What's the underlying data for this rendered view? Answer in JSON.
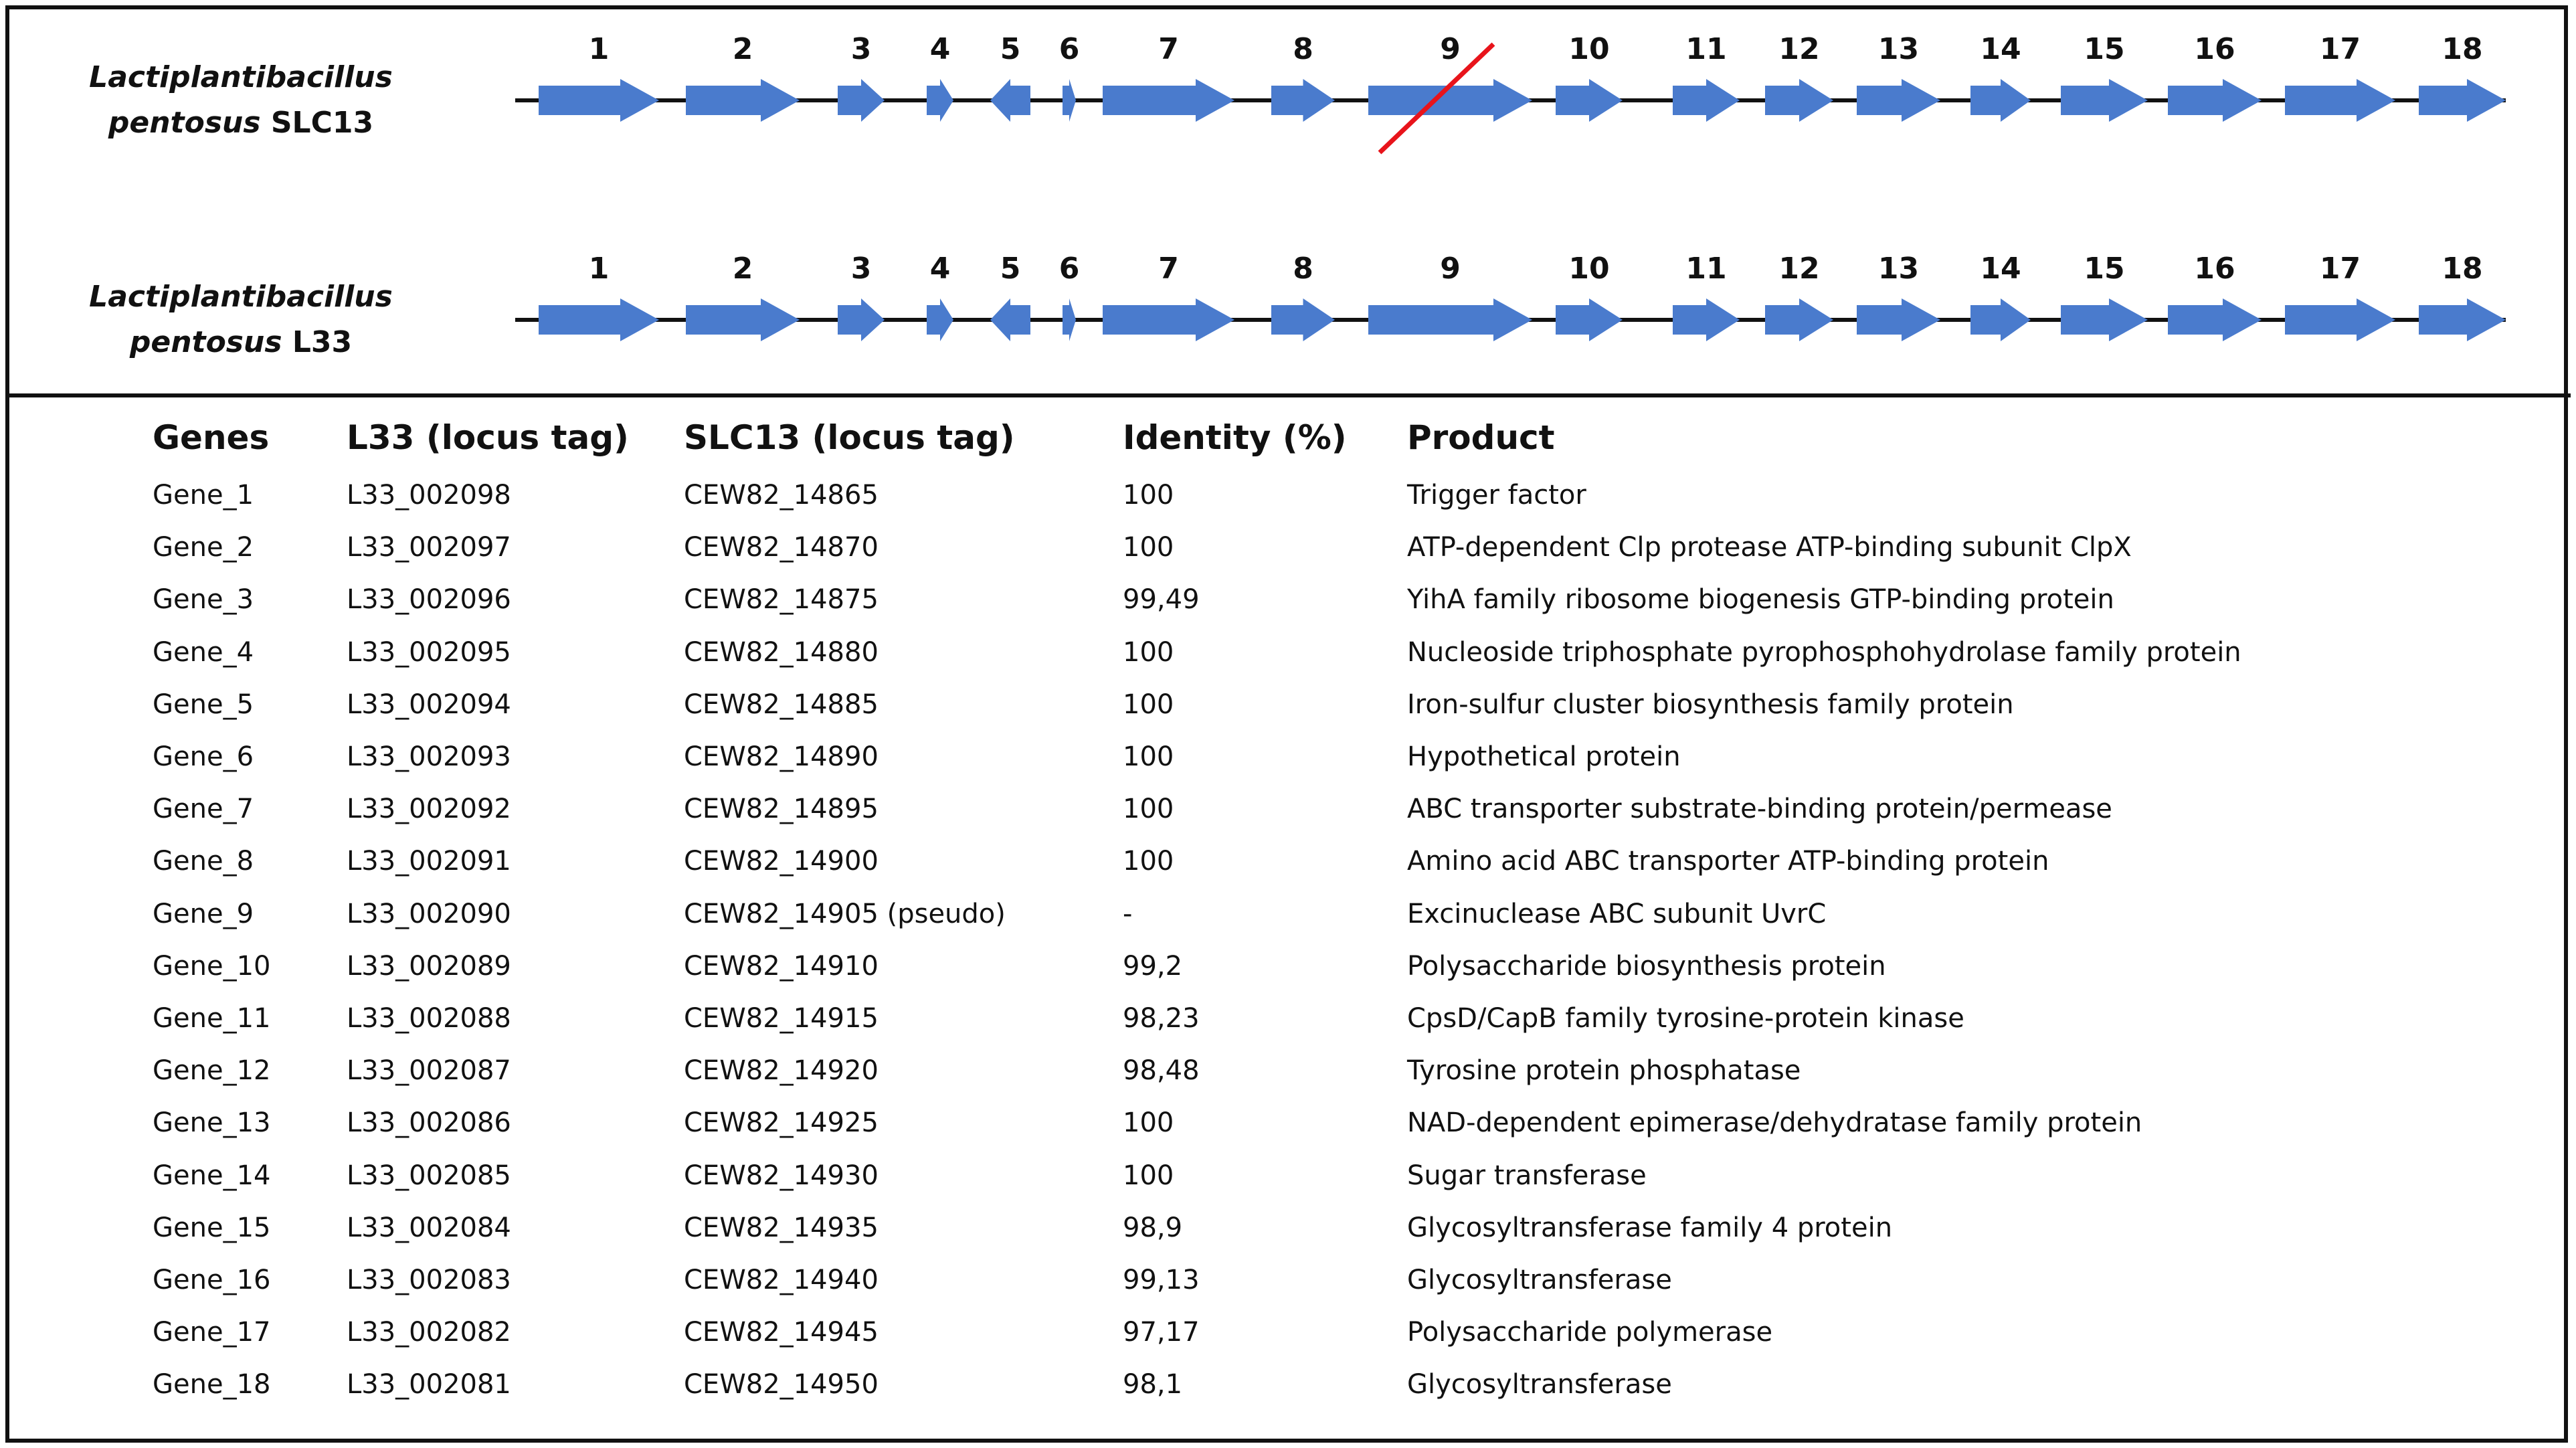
{
  "strains": [
    {
      "genus": "Lactiplantibacillus",
      "species": "pentosus",
      "strain": "SLC13"
    },
    {
      "genus": "Lactiplantibacillus",
      "species": "pentosus",
      "strain": "L33"
    }
  ],
  "colors": {
    "arrow": "#4a7bcd",
    "backbone": "#111111",
    "strike": "#e8141b"
  },
  "genes_diagram": [
    {
      "label": "1",
      "dir": "forward"
    },
    {
      "label": "2",
      "dir": "forward"
    },
    {
      "label": "3",
      "dir": "forward"
    },
    {
      "label": "4",
      "dir": "forward"
    },
    {
      "label": "5",
      "dir": "reverse"
    },
    {
      "label": "6",
      "dir": "forward"
    },
    {
      "label": "7",
      "dir": "forward"
    },
    {
      "label": "8",
      "dir": "forward"
    },
    {
      "label": "9",
      "dir": "forward"
    },
    {
      "label": "10",
      "dir": "forward"
    },
    {
      "label": "11",
      "dir": "forward"
    },
    {
      "label": "12",
      "dir": "forward"
    },
    {
      "label": "13",
      "dir": "forward"
    },
    {
      "label": "14",
      "dir": "forward"
    },
    {
      "label": "15",
      "dir": "forward"
    },
    {
      "label": "16",
      "dir": "forward"
    },
    {
      "label": "17",
      "dir": "forward"
    },
    {
      "label": "18",
      "dir": "forward"
    }
  ],
  "pseudogene_in_SLC13": "9",
  "table": {
    "headers": [
      "Genes",
      "L33 (locus tag)",
      "SLC13 (locus tag)",
      "Identity (%)",
      "Product"
    ],
    "rows": [
      [
        "Gene_1",
        "L33_002098",
        "CEW82_14865",
        "100",
        "Trigger factor"
      ],
      [
        "Gene_2",
        "L33_002097",
        "CEW82_14870",
        "100",
        "ATP-dependent Clp protease ATP-binding subunit ClpX"
      ],
      [
        "Gene_3",
        "L33_002096",
        "CEW82_14875",
        "99,49",
        "YihA family ribosome biogenesis GTP-binding protein"
      ],
      [
        "Gene_4",
        "L33_002095",
        "CEW82_14880",
        "100",
        "Nucleoside triphosphate pyrophosphohydrolase family protein"
      ],
      [
        "Gene_5",
        "L33_002094",
        "CEW82_14885",
        "100",
        "Iron-sulfur cluster biosynthesis family protein"
      ],
      [
        "Gene_6",
        "L33_002093",
        "CEW82_14890",
        "100",
        "Hypothetical protein"
      ],
      [
        "Gene_7",
        "L33_002092",
        "CEW82_14895",
        "100",
        "ABC transporter substrate-binding protein/permease"
      ],
      [
        "Gene_8",
        "L33_002091",
        "CEW82_14900",
        "100",
        "Amino acid ABC transporter ATP-binding protein"
      ],
      [
        "Gene_9",
        "L33_002090",
        "CEW82_14905 (pseudo)",
        "-",
        "Excinuclease ABC subunit UvrC"
      ],
      [
        "Gene_10",
        "L33_002089",
        "CEW82_14910",
        "99,2",
        "Polysaccharide biosynthesis protein"
      ],
      [
        "Gene_11",
        "L33_002088",
        "CEW82_14915",
        "98,23",
        "CpsD/CapB family tyrosine-protein kinase"
      ],
      [
        "Gene_12",
        "L33_002087",
        "CEW82_14920",
        "98,48",
        "Tyrosine protein phosphatase"
      ],
      [
        "Gene_13",
        "L33_002086",
        "CEW82_14925",
        "100",
        "NAD-dependent epimerase/dehydratase family protein"
      ],
      [
        "Gene_14",
        "L33_002085",
        "CEW82_14930",
        "100",
        "Sugar transferase"
      ],
      [
        "Gene_15",
        "L33_002084",
        "CEW82_14935",
        "98,9",
        "Glycosyltransferase family 4 protein"
      ],
      [
        "Gene_16",
        "L33_002083",
        "CEW82_14940",
        "99,13",
        "Glycosyltransferase"
      ],
      [
        "Gene_17",
        "L33_002082",
        "CEW82_14945",
        "97,17",
        "Polysaccharide polymerase"
      ],
      [
        "Gene_18",
        "L33_002081",
        "CEW82_14950",
        "98,1",
        "Glycosyltransferase"
      ]
    ]
  }
}
